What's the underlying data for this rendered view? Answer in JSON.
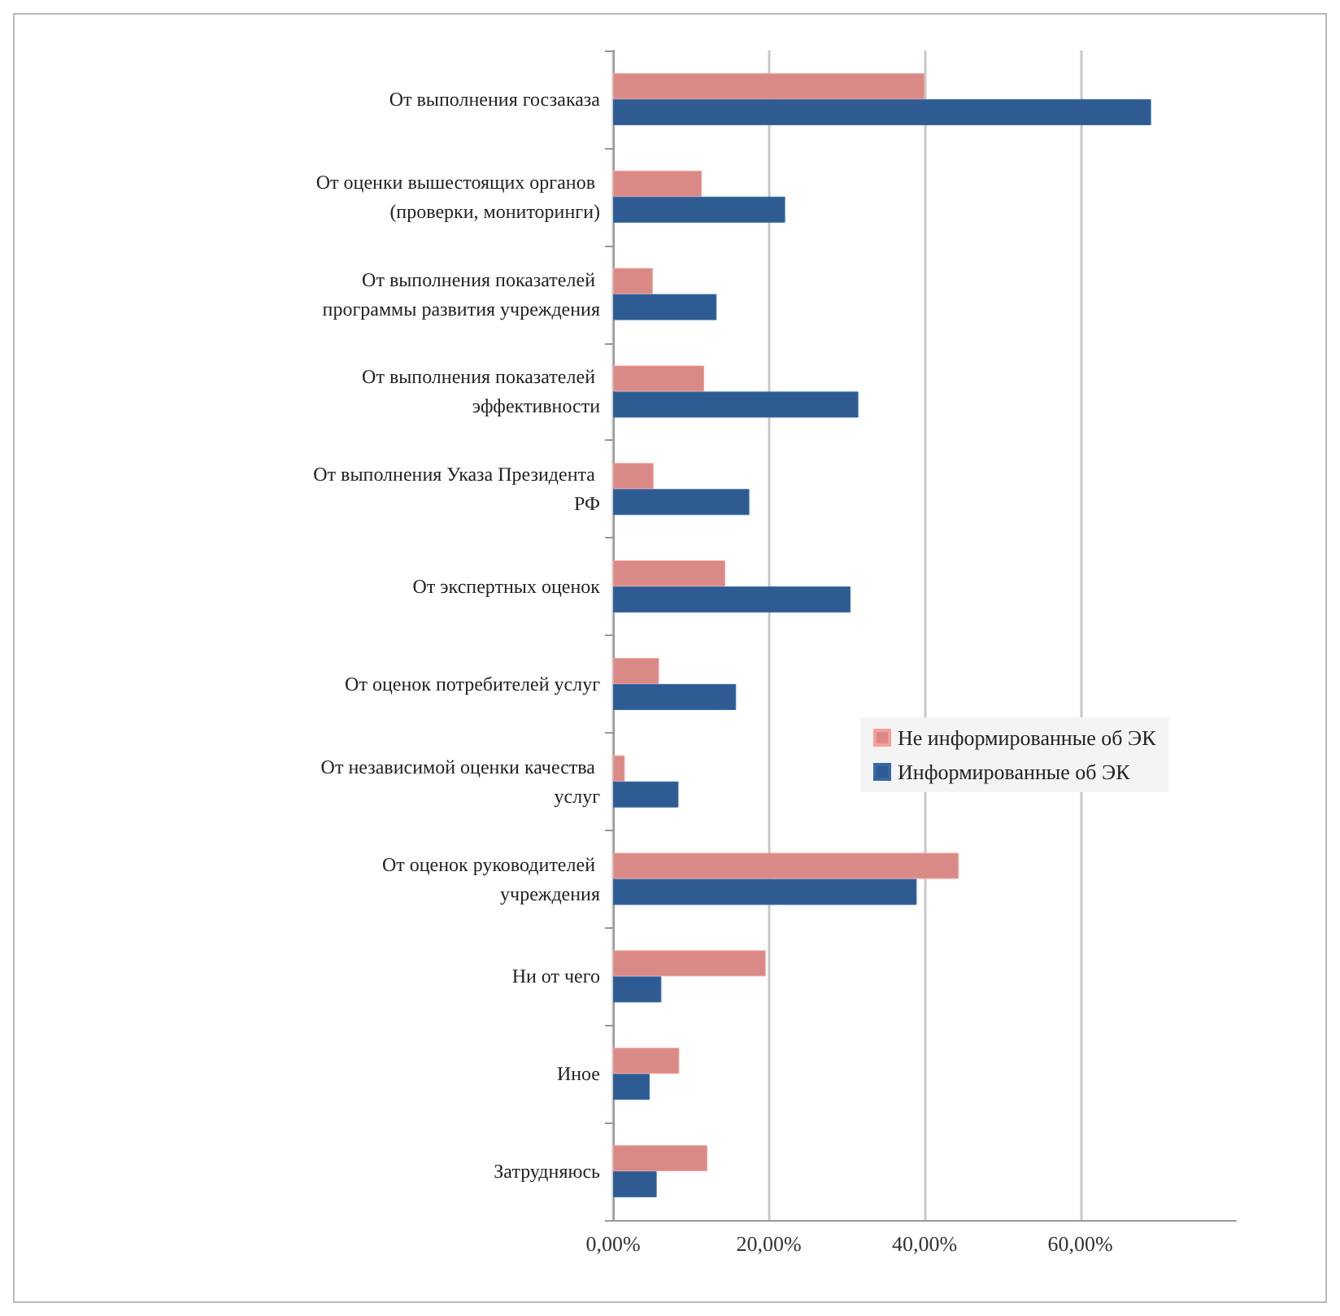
{
  "chart_data": {
    "type": "bar",
    "orientation": "horizontal",
    "categories": [
      "От выполнения госзаказа",
      "От оценки вышестоящих органов (проверки, мониторинги)",
      "От выполнения показателей программы развития учреждения",
      "От выполнения показателей эффективности",
      "От выполнения Указа Президента РФ",
      "От экспертных оценок",
      "От оценок потребителей услуг",
      "От независимой оценки качества услуг",
      "От оценок руководителей учреждения",
      "Ни от чего",
      "Иное",
      "Затрудняюсь"
    ],
    "series": [
      {
        "name": "Не информированные об ЭК",
        "color": "#d98a86",
        "values": [
          40,
          11.4,
          5.1,
          11.7,
          5.2,
          14.4,
          5.9,
          1.5,
          44.4,
          19.6,
          8.5,
          12.1
        ]
      },
      {
        "name": "Информированные об ЭК",
        "color": "#2e5c92",
        "values": [
          69.1,
          22.1,
          13.3,
          31.5,
          17.5,
          30.5,
          15.8,
          8.4,
          39,
          6.2,
          4.7,
          5.6
        ]
      }
    ],
    "xlim": [
      0,
      80
    ],
    "xticks": [
      {
        "value": 0,
        "label": "0,00%"
      },
      {
        "value": 20,
        "label": "20,00%"
      },
      {
        "value": 40,
        "label": "40,00%"
      },
      {
        "value": 60,
        "label": "60,00%"
      }
    ],
    "grid": "x",
    "legend": "right"
  }
}
